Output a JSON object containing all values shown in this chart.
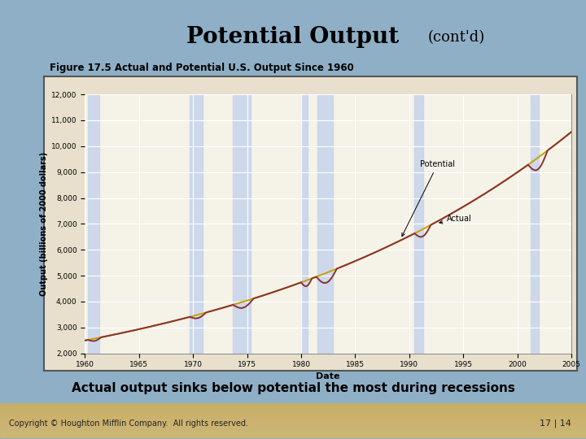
{
  "title_main": "Potential Output",
  "title_sub": "(cont'd)",
  "figure_label": "Figure 17.5 Actual and Potential U.S. Output Since 1960",
  "caption": "Actual output sinks below potential the most during recessions",
  "copyright": "Copyright © Houghton Mifflin Company.  All rights reserved.",
  "page": "17 | 14",
  "bg_color": "#8fafc6",
  "chart_outer_bg": "#e8e0cc",
  "chart_inner_bg": "#f5f2e8",
  "recession_band_color": "#c8d4ec",
  "xlabel": "Date",
  "ylabel": "Output (billions of 2000 dollars)",
  "xlim": [
    1960,
    2005
  ],
  "ylim": [
    2000,
    12000
  ],
  "yticks": [
    2000,
    3000,
    4000,
    5000,
    6000,
    7000,
    8000,
    9000,
    10000,
    11000,
    12000
  ],
  "xticks": [
    1960,
    1965,
    1970,
    1975,
    1980,
    1985,
    1990,
    1995,
    2000,
    2005
  ],
  "recession_bands": [
    [
      1960.3,
      1961.3
    ],
    [
      1969.7,
      1970.9
    ],
    [
      1973.7,
      1975.3
    ],
    [
      1980.0,
      1980.6
    ],
    [
      1981.5,
      1982.9
    ],
    [
      1990.5,
      1991.3
    ],
    [
      2001.2,
      2002.0
    ]
  ],
  "potential_color": "#c8a000",
  "actual_color": "#8b3030",
  "line_width": 1.4,
  "footer_color": "#c8b060"
}
